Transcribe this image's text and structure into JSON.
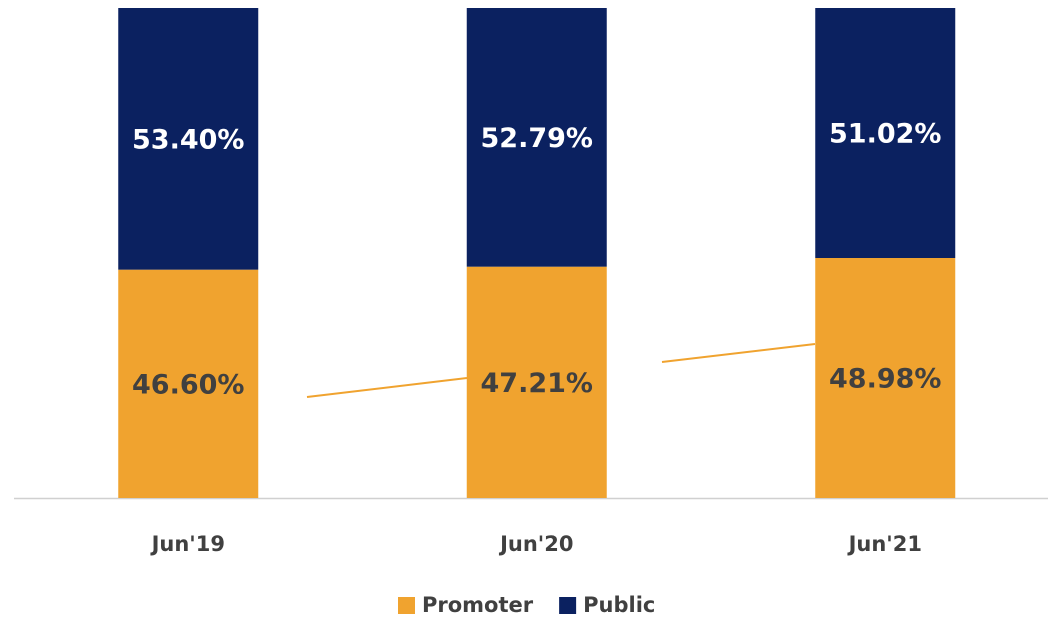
{
  "chart_data": {
    "type": "stacked_bar",
    "categories": [
      "Jun'19",
      "Jun'20",
      "Jun'21"
    ],
    "series": [
      {
        "name": "Promoter",
        "color": "#f0a32f",
        "values": [
          46.6,
          47.21,
          48.98
        ],
        "value_labels": [
          "46.60%",
          "47.21%",
          "48.98%"
        ]
      },
      {
        "name": "Public",
        "color": "#0b2160",
        "values": [
          53.4,
          52.79,
          51.02
        ],
        "value_labels": [
          "53.40%",
          "52.79%",
          "51.02%"
        ]
      }
    ],
    "ylim": [
      0,
      100
    ],
    "legend": "bottom"
  }
}
